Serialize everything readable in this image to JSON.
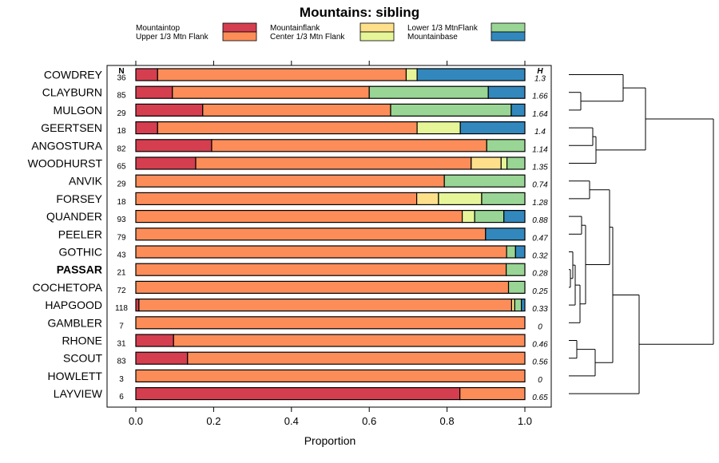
{
  "chart_data": {
    "type": "bar",
    "stacked": true,
    "orientation": "horizontal",
    "title": "Mountains: sibling",
    "xlabel": "Proportion",
    "ylabel": "",
    "xlim": [
      0,
      1
    ],
    "xticks": [
      "0.0",
      "0.2",
      "0.4",
      "0.6",
      "0.8",
      "1.0"
    ],
    "n_header": "N",
    "h_header": "H",
    "series": [
      {
        "name": "Mountaintop",
        "color": "#D53E4F"
      },
      {
        "name": "Upper 1/3 Mtn Flank",
        "color": "#FC8D59"
      },
      {
        "name": "Mountainflank",
        "color": "#FEE08B"
      },
      {
        "name": "Center 1/3 Mtn Flank",
        "color": "#E6F598"
      },
      {
        "name": "Lower 1/3 MtnFlank",
        "color": "#99D594"
      },
      {
        "name": "Mountainbase",
        "color": "#3288BD"
      }
    ],
    "rows": [
      {
        "name": "COWDREY",
        "n": "36",
        "h": "1.3",
        "values": [
          0.056,
          0.639,
          0.0,
          0.028,
          0.0,
          0.277
        ],
        "bold": false
      },
      {
        "name": "CLAYBURN",
        "n": "85",
        "h": "1.66",
        "values": [
          0.094,
          0.506,
          0.0,
          0.0,
          0.306,
          0.094
        ],
        "bold": false
      },
      {
        "name": "MULGON",
        "n": "29",
        "h": "1.64",
        "values": [
          0.172,
          0.483,
          0.0,
          0.0,
          0.31,
          0.035
        ],
        "bold": false
      },
      {
        "name": "GEERTSEN",
        "n": "18",
        "h": "1.4",
        "values": [
          0.056,
          0.667,
          0.0,
          0.111,
          0.0,
          0.166
        ],
        "bold": false
      },
      {
        "name": "ANGOSTURA",
        "n": "82",
        "h": "1.14",
        "values": [
          0.195,
          0.707,
          0.0,
          0.0,
          0.098,
          0.0
        ],
        "bold": false
      },
      {
        "name": "WOODHURST",
        "n": "65",
        "h": "1.35",
        "values": [
          0.154,
          0.708,
          0.077,
          0.015,
          0.046,
          0.0
        ],
        "bold": false
      },
      {
        "name": "ANVIK",
        "n": "29",
        "h": "0.74",
        "values": [
          0.0,
          0.793,
          0.0,
          0.0,
          0.207,
          0.0
        ],
        "bold": false
      },
      {
        "name": "FORSEY",
        "n": "18",
        "h": "1.28",
        "values": [
          0.0,
          0.722,
          0.056,
          0.111,
          0.111,
          0.0
        ],
        "bold": false
      },
      {
        "name": "QUANDER",
        "n": "93",
        "h": "0.88",
        "values": [
          0.0,
          0.839,
          0.0,
          0.032,
          0.075,
          0.054
        ],
        "bold": false
      },
      {
        "name": "PEELER",
        "n": "79",
        "h": "0.47",
        "values": [
          0.0,
          0.899,
          0.0,
          0.0,
          0.0,
          0.101
        ],
        "bold": false
      },
      {
        "name": "GOTHIC",
        "n": "43",
        "h": "0.32",
        "values": [
          0.0,
          0.953,
          0.0,
          0.0,
          0.023,
          0.024
        ],
        "bold": false
      },
      {
        "name": "PASSAR",
        "n": "21",
        "h": "0.28",
        "values": [
          0.0,
          0.952,
          0.0,
          0.0,
          0.048,
          0.0
        ],
        "bold": true
      },
      {
        "name": "COCHETOPA",
        "n": "72",
        "h": "0.25",
        "values": [
          0.0,
          0.958,
          0.0,
          0.0,
          0.042,
          0.0
        ],
        "bold": false
      },
      {
        "name": "HAPGOOD",
        "n": "118",
        "h": "0.33",
        "values": [
          0.008,
          0.958,
          0.008,
          0.0,
          0.017,
          0.009
        ],
        "bold": false
      },
      {
        "name": "GAMBLER",
        "n": "7",
        "h": "0",
        "values": [
          0.0,
          1.0,
          0.0,
          0.0,
          0.0,
          0.0
        ],
        "bold": false
      },
      {
        "name": "RHONE",
        "n": "31",
        "h": "0.46",
        "values": [
          0.097,
          0.903,
          0.0,
          0.0,
          0.0,
          0.0
        ],
        "bold": false
      },
      {
        "name": "SCOUT",
        "n": "83",
        "h": "0.56",
        "values": [
          0.133,
          0.867,
          0.0,
          0.0,
          0.0,
          0.0
        ],
        "bold": false
      },
      {
        "name": "HOWLETT",
        "n": "3",
        "h": "0",
        "values": [
          0.0,
          1.0,
          0.0,
          0.0,
          0.0,
          0.0
        ],
        "bold": false
      },
      {
        "name": "LAYVIEW",
        "n": "6",
        "h": "0.65",
        "values": [
          0.833,
          0.167,
          0.0,
          0.0,
          0.0,
          0.0
        ],
        "bold": false
      }
    ],
    "dendrogram": true
  }
}
